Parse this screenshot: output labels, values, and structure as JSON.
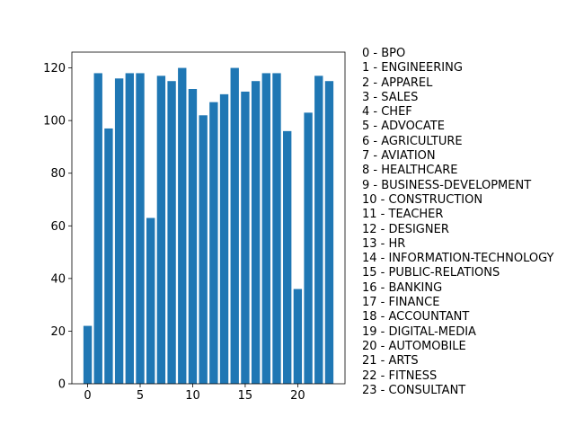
{
  "chart_data": {
    "type": "bar",
    "categories": [
      0,
      1,
      2,
      3,
      4,
      5,
      6,
      7,
      8,
      9,
      10,
      11,
      12,
      13,
      14,
      15,
      16,
      17,
      18,
      19,
      20,
      21,
      22,
      23
    ],
    "values": [
      22,
      118,
      97,
      116,
      118,
      118,
      63,
      117,
      115,
      120,
      112,
      102,
      107,
      110,
      120,
      111,
      115,
      118,
      118,
      96,
      36,
      103,
      117,
      115
    ],
    "xlim": [
      -1.5,
      24.5
    ],
    "ylim": [
      0,
      126
    ],
    "xticks": [
      0,
      5,
      10,
      15,
      20
    ],
    "yticks": [
      0,
      20,
      40,
      60,
      80,
      100,
      120
    ],
    "title": "",
    "xlabel": "",
    "ylabel": "",
    "grid": false,
    "bar_color": "#1f77b4",
    "legend_placement": "right",
    "legend_entries": [
      "0 - BPO",
      "1 - ENGINEERING",
      "2 - APPAREL",
      "3 - SALES",
      "4 - CHEF",
      "5 - ADVOCATE",
      "6 - AGRICULTURE",
      "7 - AVIATION",
      "8 - HEALTHCARE",
      "9 - BUSINESS-DEVELOPMENT",
      "10 - CONSTRUCTION",
      "11 - TEACHER",
      "12 - DESIGNER",
      "13 - HR",
      "14 - INFORMATION-TECHNOLOGY",
      "15 - PUBLIC-RELATIONS",
      "16 - BANKING",
      "17 - FINANCE",
      "18 - ACCOUNTANT",
      "19 - DIGITAL-MEDIA",
      "20 - AUTOMOBILE",
      "21 - ARTS",
      "22 - FITNESS",
      "23 - CONSULTANT"
    ]
  }
}
